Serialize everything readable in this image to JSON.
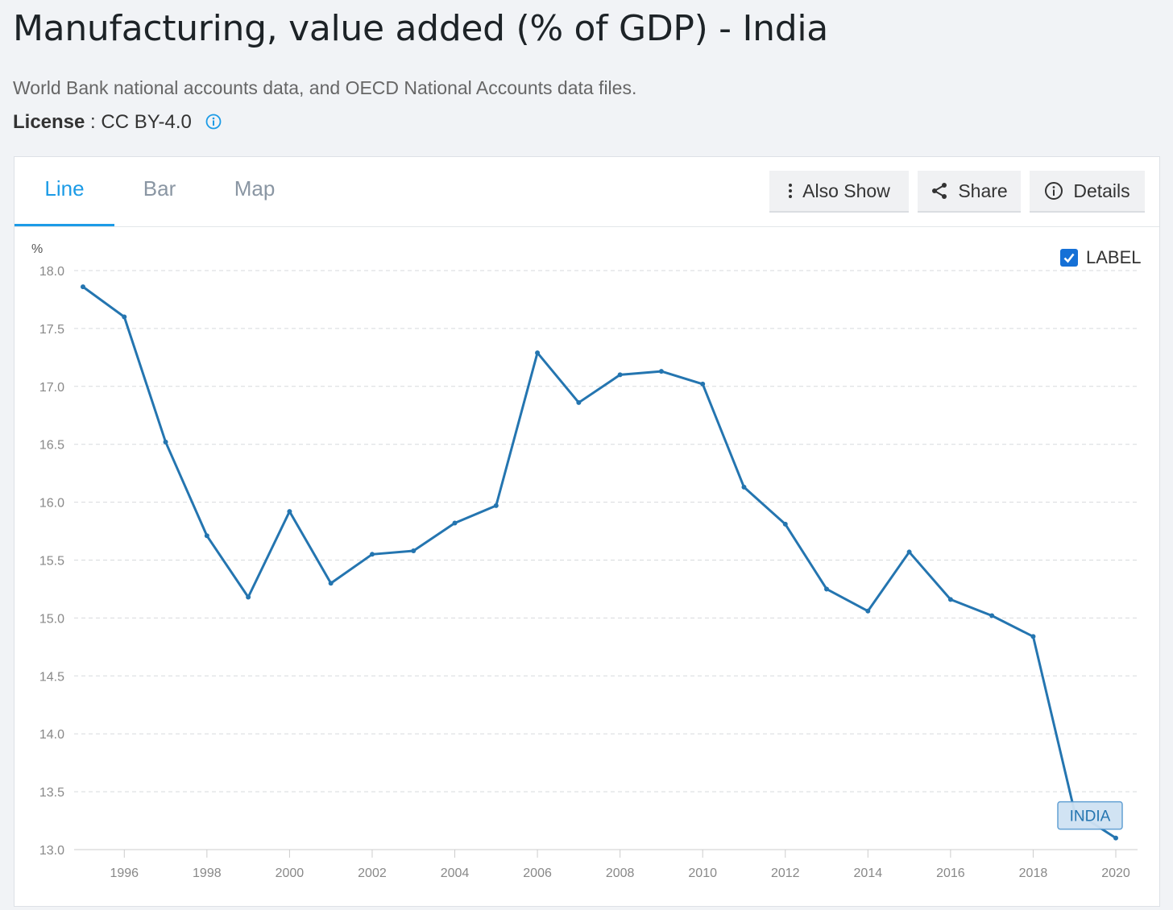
{
  "page": {
    "title": "Manufacturing, value added (% of GDP) - India",
    "source": "World Bank national accounts data, and OECD National Accounts data files.",
    "license_label": "License",
    "license_value": " : CC BY-4.0"
  },
  "tabs": [
    {
      "label": "Line",
      "active": true
    },
    {
      "label": "Bar",
      "active": false
    },
    {
      "label": "Map",
      "active": false
    }
  ],
  "actions": {
    "also_show": "Also Show",
    "share": "Share",
    "details": "Details"
  },
  "label_toggle": {
    "label": "LABEL",
    "checked": true
  },
  "colors": {
    "accent": "#1c9be6",
    "series": "#2475b0",
    "checkbox": "#1570d6"
  },
  "chart_data": {
    "type": "line",
    "ylabel": "%",
    "ylim": [
      13.0,
      18.0
    ],
    "yticks": [
      "13.0",
      "13.5",
      "14.0",
      "14.5",
      "15.0",
      "15.5",
      "16.0",
      "16.5",
      "17.0",
      "17.5",
      "18.0"
    ],
    "xticks": [
      "1996",
      "1998",
      "2000",
      "2002",
      "2004",
      "2006",
      "2008",
      "2010",
      "2012",
      "2014",
      "2016",
      "2018",
      "2020"
    ],
    "grid": true,
    "series": [
      {
        "name": "INDIA",
        "x": [
          1995,
          1996,
          1997,
          1998,
          1999,
          2000,
          2001,
          2002,
          2003,
          2004,
          2005,
          2006,
          2007,
          2008,
          2009,
          2010,
          2011,
          2012,
          2013,
          2014,
          2015,
          2016,
          2017,
          2018,
          2019,
          2020
        ],
        "values": [
          17.86,
          17.6,
          16.52,
          15.71,
          15.18,
          15.92,
          15.3,
          15.55,
          15.58,
          15.82,
          15.97,
          17.29,
          16.86,
          17.1,
          17.13,
          17.02,
          16.13,
          15.81,
          15.25,
          15.06,
          15.57,
          15.16,
          15.02,
          14.84,
          13.33,
          13.1
        ]
      }
    ]
  }
}
